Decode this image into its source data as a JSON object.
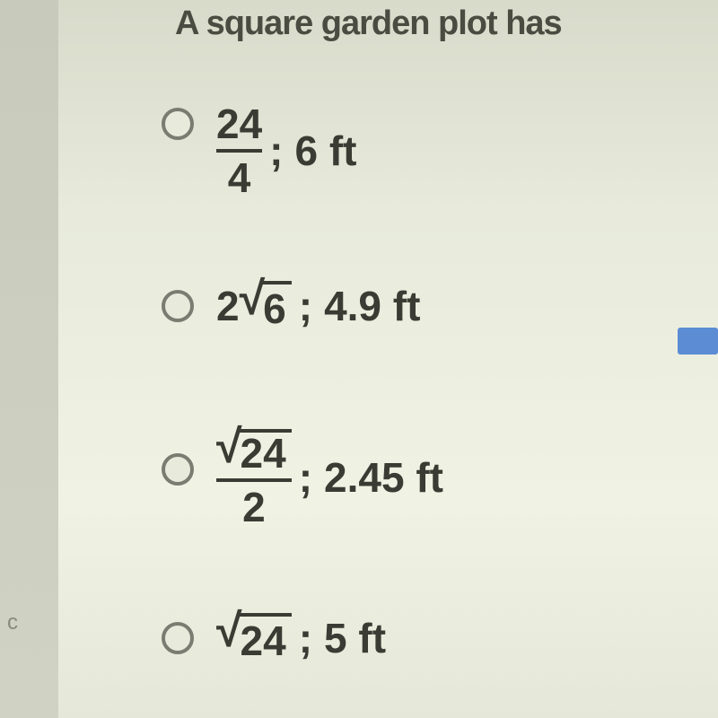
{
  "header": {
    "title": "A square garden plot has"
  },
  "options": [
    {
      "fraction": {
        "numerator": "24",
        "denominator": "4"
      },
      "answer": "6 ft"
    },
    {
      "coefficient": "2",
      "sqrt": "6",
      "answer": "4.9 ft"
    },
    {
      "fraction": {
        "numerator_sqrt": "24",
        "denominator": "2"
      },
      "answer": "2.45 ft"
    },
    {
      "sqrt": "24",
      "answer": "5 ft"
    }
  ],
  "sidebar_char": "c",
  "colors": {
    "background_top": "#d8daca",
    "background_bottom": "#e5e7d8",
    "text": "#3a3c34",
    "radio_border": "#7a7c72",
    "accent_blue": "#5b8cd4"
  }
}
